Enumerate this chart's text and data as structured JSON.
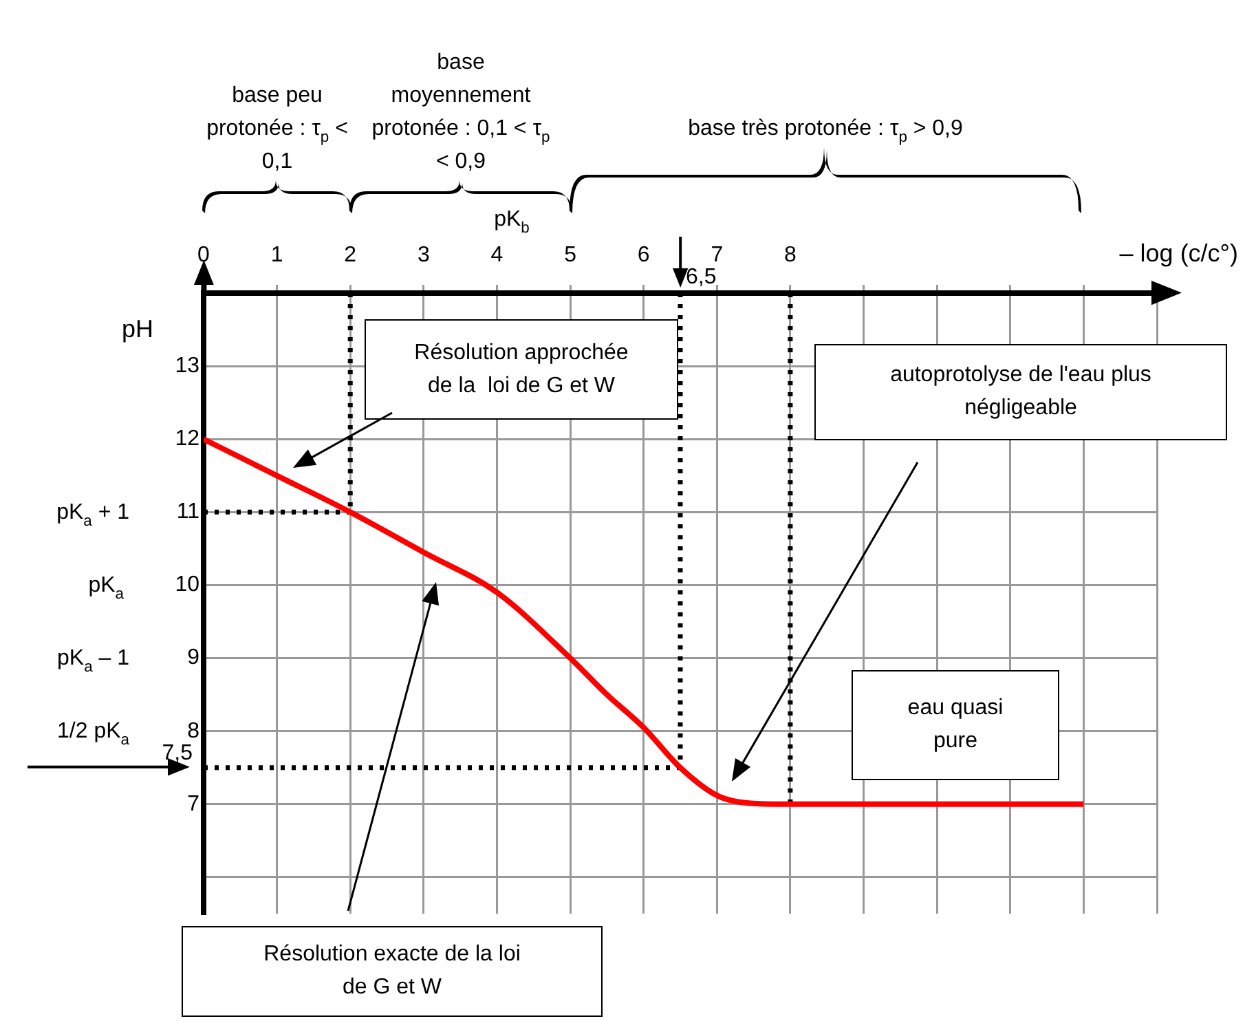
{
  "chart_data": {
    "type": "line",
    "xlabel": "– log (c/c°)",
    "ylabel": "pH",
    "x": [
      0,
      1,
      2,
      3,
      4,
      5,
      5.5,
      6,
      6.5,
      7,
      7.5,
      8,
      9,
      10,
      11,
      12
    ],
    "series": [
      {
        "color": "#ff0000",
        "values": [
          12,
          11.5,
          11,
          10.45,
          9.9,
          9,
          8.5,
          8.05,
          7.5,
          7.12,
          7.01,
          7,
          7,
          7,
          7,
          7
        ]
      }
    ],
    "xlim": [
      0,
      13
    ],
    "xticks": [
      0,
      1,
      2,
      3,
      4,
      5,
      6,
      7,
      8,
      {
        "value": 9,
        "label": null
      },
      {
        "value": 10,
        "label": null
      },
      {
        "value": 11,
        "label": null
      },
      {
        "value": 12,
        "label": null
      },
      {
        "value": 13,
        "label": null
      }
    ],
    "ylim": [
      5.5,
      14
    ],
    "yticks": [
      {
        "value": 6,
        "label": null
      },
      7,
      8,
      9,
      10,
      11,
      12,
      13
    ],
    "ref_lines": [
      {
        "axis": "x",
        "value": 2,
        "color": "#000000",
        "line_style": "dotted"
      },
      {
        "axis": "y",
        "value": 11,
        "color": "#000000",
        "line_style": "dotted"
      },
      {
        "axis": "x",
        "value": 6.5,
        "label": "6,5",
        "color": "#000000",
        "line_style": "dotted"
      },
      {
        "axis": "y",
        "value": 7.5,
        "label": "7,5",
        "color": "#000000",
        "line_style": "dotted"
      },
      {
        "axis": "x",
        "value": 8,
        "color": "#000000",
        "line_style": "dotted"
      }
    ],
    "annotations": [
      "pK$_{b}$",
      "base peu protonée : τ$_{p}$ < 0,1",
      "base moyennement protonée : 0,1 < τ$_{p}$ < 0,9",
      "base très protonée : τ$_{p}$ > 0,9",
      "Résolution approchée de la  loi de G et W",
      "Résolution exacte de la loi de G et W",
      "autoprotolyse de l'eau plus négligeable",
      "eau quasi pure",
      "pK$_{a}$ + 1",
      "pK$_{a}$",
      "pK$_{a}$ – 1",
      "1/2 pK$_{a}$"
    ],
    "grid": true,
    "line_style": "solid"
  }
}
